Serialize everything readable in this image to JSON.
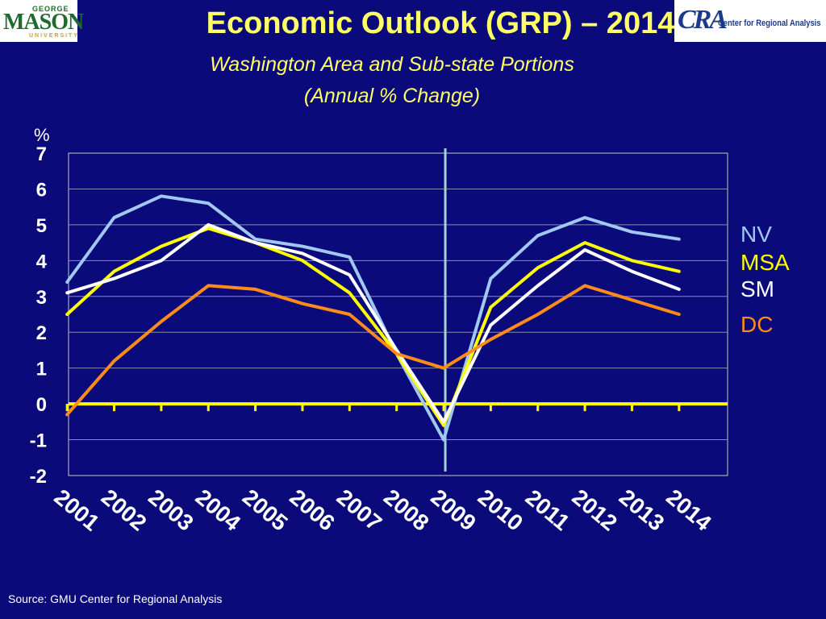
{
  "header": {
    "title": "Economic Outlook (GRP) – 2014",
    "subtitle_line1": "Washington Area and Sub-state Portions",
    "subtitle_line2": "(Annual % Change)"
  },
  "logos": {
    "left_top": "GEORGE",
    "left_main": "MASON",
    "left_bottom": "UNIVERSITY",
    "right_mark": "CRA",
    "right_name": "Center for Regional Analysis"
  },
  "source": "Source: GMU Center for Regional Analysis",
  "chart_data": {
    "type": "line",
    "ylabel": "%",
    "ylim": [
      -2,
      7
    ],
    "yticks": [
      -2,
      -1,
      0,
      1,
      2,
      3,
      4,
      5,
      6,
      7
    ],
    "x": [
      "2001",
      "2002",
      "2003",
      "2004",
      "2005",
      "2006",
      "2007",
      "2008",
      "2009",
      "2010",
      "2011",
      "2012",
      "2013",
      "2014"
    ],
    "grid": true,
    "vertical_marker_at": "2009",
    "legend_placement": "right",
    "series": [
      {
        "name": "NV",
        "color": "#a0c8f0",
        "values": [
          3.4,
          5.2,
          5.8,
          5.6,
          4.6,
          4.4,
          4.1,
          1.4,
          -1.0,
          3.5,
          4.7,
          5.2,
          4.8,
          4.6
        ]
      },
      {
        "name": "MSA",
        "color": "#ffff00",
        "values": [
          2.5,
          3.7,
          4.4,
          4.9,
          4.5,
          4.0,
          3.1,
          1.4,
          -0.6,
          2.7,
          3.8,
          4.5,
          4.0,
          3.7
        ]
      },
      {
        "name": "SM",
        "color": "#ffffff",
        "values": [
          3.1,
          3.5,
          4.0,
          5.0,
          4.5,
          4.2,
          3.6,
          1.5,
          -0.5,
          2.2,
          3.3,
          4.3,
          3.7,
          3.2
        ]
      },
      {
        "name": "DC",
        "color": "#ff8c1a",
        "values": [
          -0.3,
          1.2,
          2.3,
          3.3,
          3.2,
          2.8,
          2.5,
          1.4,
          1.0,
          1.8,
          2.5,
          3.3,
          2.9,
          2.5
        ]
      }
    ]
  }
}
